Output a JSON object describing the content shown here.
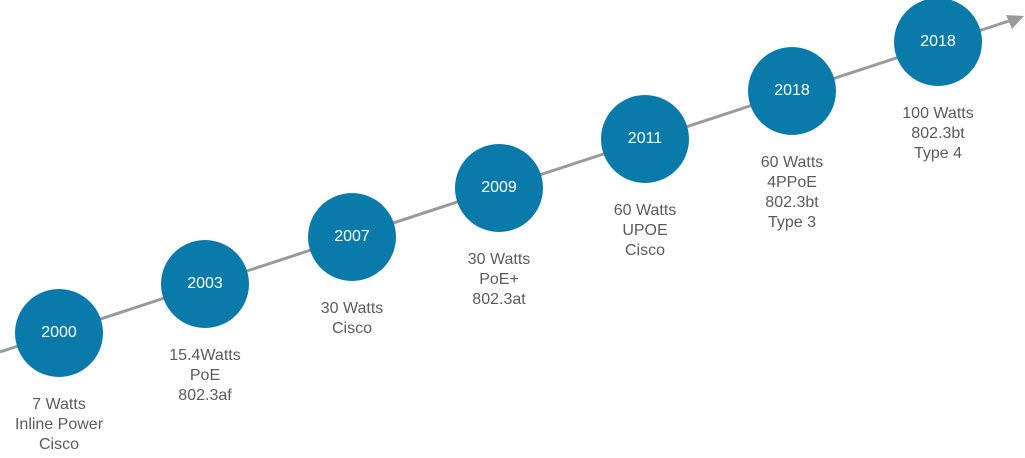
{
  "milestones": [
    {
      "year": "2000",
      "lines": [
        "7 Watts",
        "Inline Power",
        "Cisco"
      ]
    },
    {
      "year": "2003",
      "lines": [
        "15.4Watts",
        "PoE",
        "802.3af"
      ]
    },
    {
      "year": "2007",
      "lines": [
        "30 Watts",
        "Cisco"
      ]
    },
    {
      "year": "2009",
      "lines": [
        "30 Watts",
        "PoE+",
        "802.3at"
      ]
    },
    {
      "year": "2011",
      "lines": [
        "60 Watts",
        "UPOE",
        "Cisco"
      ]
    },
    {
      "year": "2018",
      "lines": [
        "60 Watts",
        "4PPoE",
        "802.3bt",
        "Type 3"
      ]
    },
    {
      "year": "2018",
      "lines": [
        "100 Watts",
        "802.3bt",
        "Type 4"
      ]
    }
  ],
  "colors": {
    "badge": "#0a7aaa",
    "axis": "#9a9a9a",
    "text": "#5b5b5b"
  }
}
